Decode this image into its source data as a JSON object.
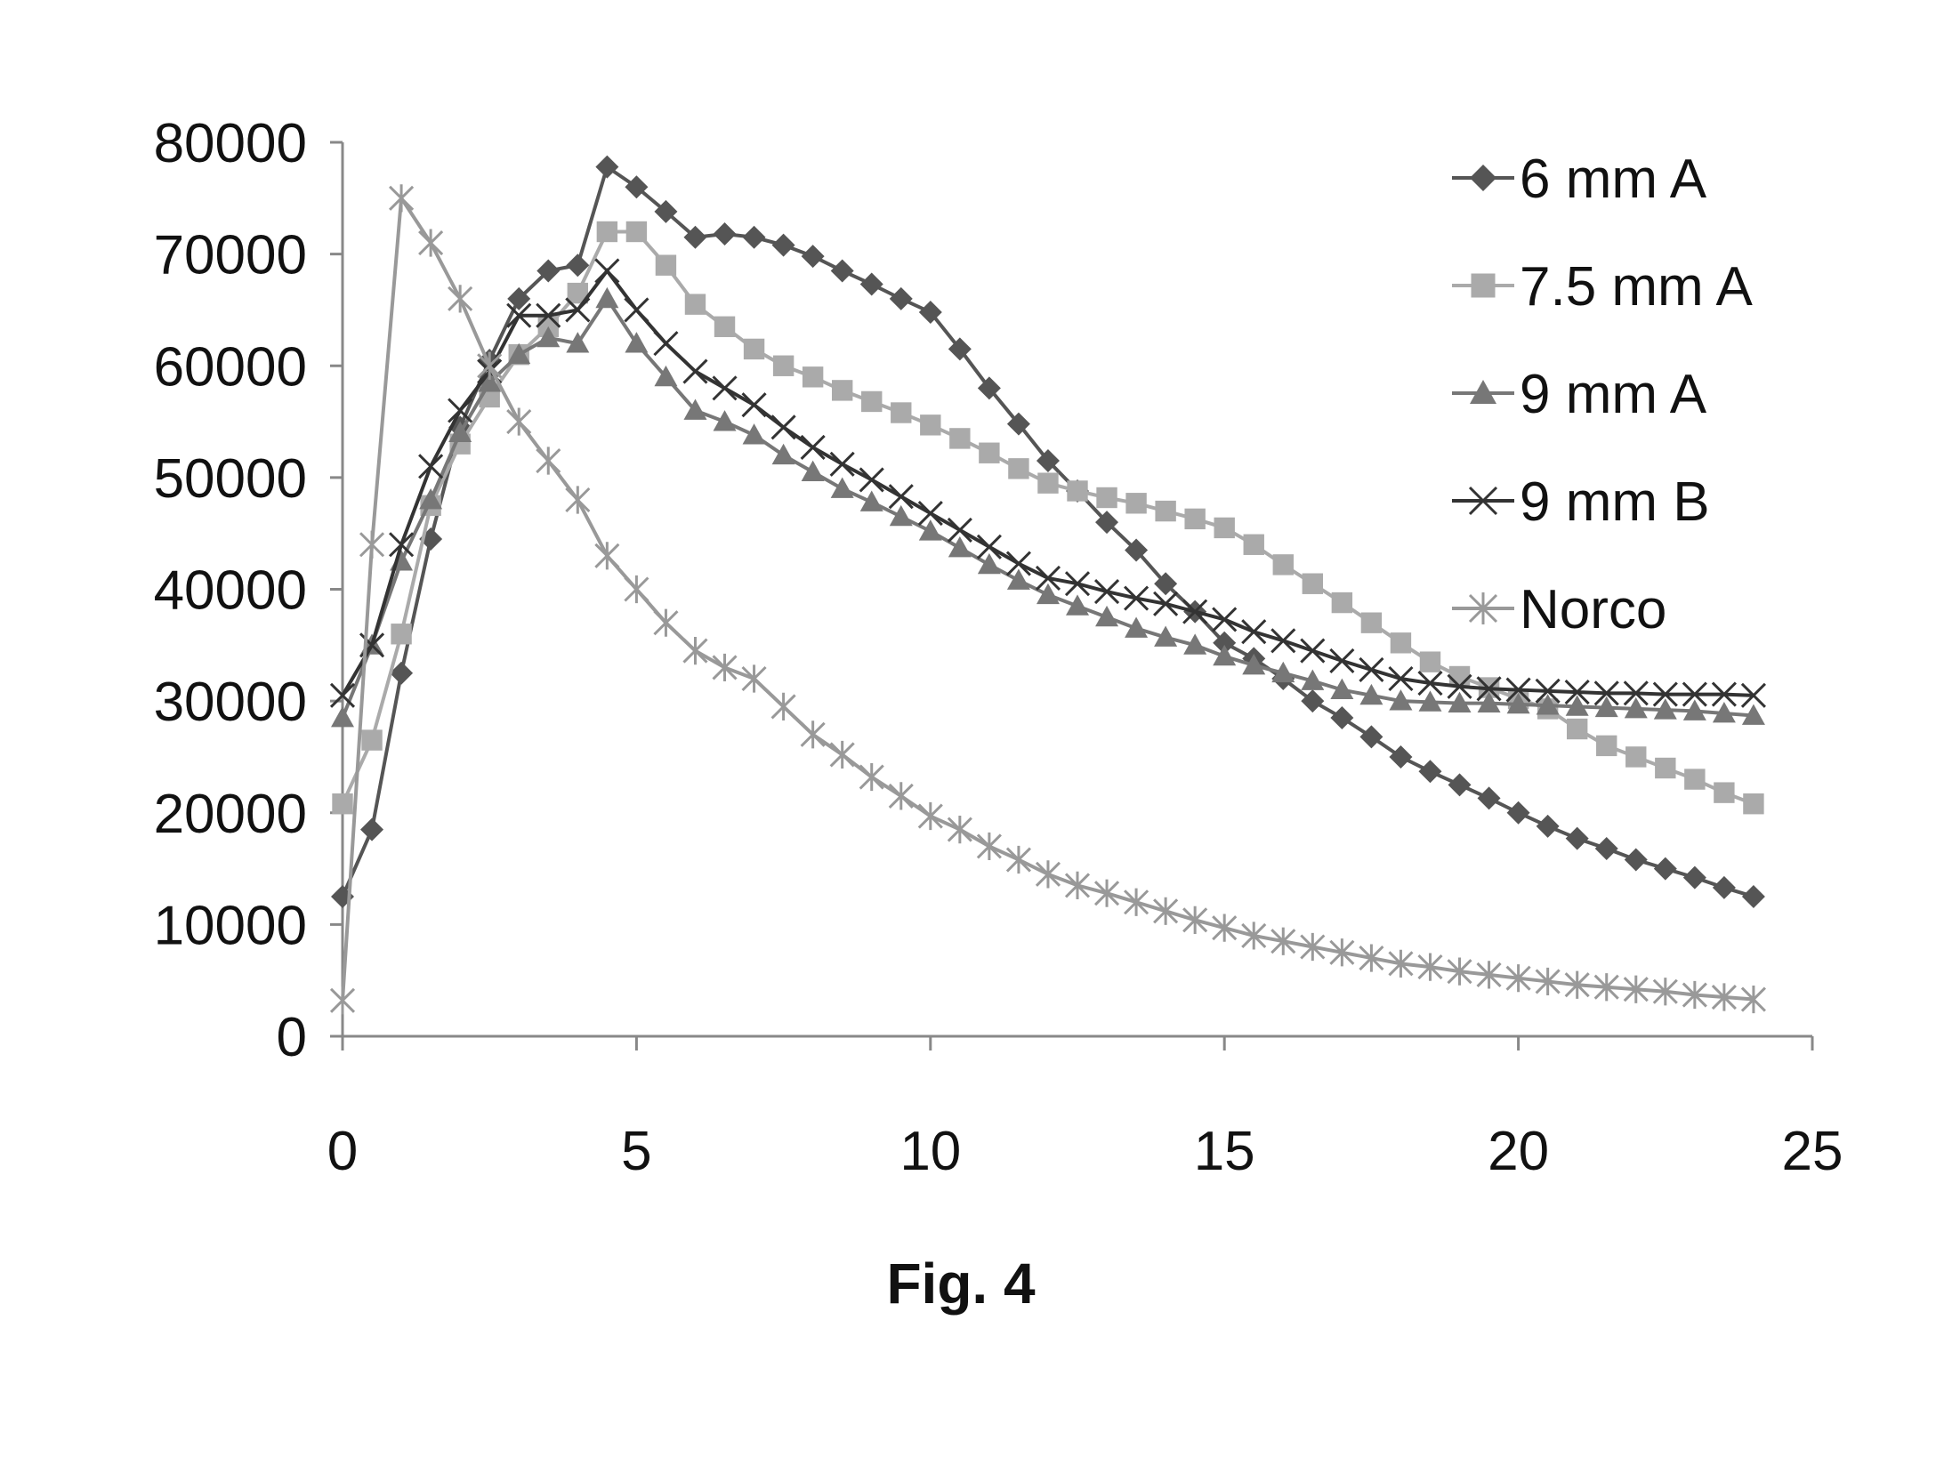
{
  "figure": {
    "caption": "Fig. 4"
  },
  "chart_data": {
    "type": "line",
    "title": "",
    "xlabel": "",
    "ylabel": "",
    "xlim": [
      0,
      25
    ],
    "ylim": [
      0,
      80000
    ],
    "xticks": [
      "0",
      "5",
      "10",
      "15",
      "20",
      "25"
    ],
    "yticks": [
      "0",
      "10000",
      "20000",
      "30000",
      "40000",
      "50000",
      "60000",
      "70000",
      "80000"
    ],
    "grid": false,
    "legend_position": "right",
    "x": [
      0,
      0.5,
      1,
      1.5,
      2,
      2.5,
      3,
      3.5,
      4,
      4.5,
      5,
      5.5,
      6,
      6.5,
      7,
      7.5,
      8,
      8.5,
      9,
      9.5,
      10,
      10.5,
      11,
      11.5,
      12,
      12.5,
      13,
      13.5,
      14,
      14.5,
      15,
      15.5,
      16,
      16.5,
      17,
      17.5,
      18,
      18.5,
      19,
      19.5,
      20,
      20.5,
      21,
      21.5,
      22,
      22.5,
      23,
      23.5,
      24
    ],
    "series": [
      {
        "name": "6 mm A",
        "marker": "diamond",
        "color": "#555555",
        "values": [
          12500,
          18500,
          32500,
          44500,
          54500,
          60500,
          66000,
          68500,
          69000,
          77800,
          76000,
          73800,
          71500,
          71800,
          71500,
          70800,
          69800,
          68500,
          67300,
          66000,
          64800,
          61500,
          58000,
          54800,
          51500,
          48800,
          46000,
          43500,
          40500,
          38000,
          35200,
          33800,
          32000,
          30000,
          28500,
          26800,
          25000,
          23700,
          22500,
          21300,
          20000,
          18800,
          17700,
          16800,
          15800,
          15000,
          14200,
          13300,
          12500
        ]
      },
      {
        "name": "7.5 mm A",
        "marker": "square",
        "color": "#aaaaaa",
        "values": [
          20800,
          26500,
          36000,
          47500,
          53000,
          57200,
          61000,
          63500,
          66500,
          72000,
          72000,
          69000,
          65500,
          63500,
          61500,
          60000,
          59000,
          57800,
          56800,
          55800,
          54700,
          53500,
          52200,
          50800,
          49500,
          48800,
          48200,
          47700,
          47000,
          46300,
          45500,
          44000,
          42200,
          40500,
          38800,
          37000,
          35200,
          33500,
          32200,
          31200,
          30200,
          29300,
          27500,
          26000,
          25000,
          24000,
          23000,
          21800,
          20800
        ]
      },
      {
        "name": "9 mm A",
        "marker": "triangle",
        "color": "#777777",
        "values": [
          28500,
          35000,
          42500,
          48000,
          54000,
          58500,
          61000,
          62500,
          62000,
          66000,
          62000,
          59000,
          56000,
          55000,
          53800,
          52000,
          50500,
          49000,
          47800,
          46500,
          45200,
          43700,
          42200,
          40800,
          39500,
          38500,
          37500,
          36500,
          35700,
          35000,
          34000,
          33200,
          32500,
          31800,
          31000,
          30500,
          30000,
          29900,
          29800,
          29800,
          29700,
          29600,
          29500,
          29400,
          29300,
          29200,
          29100,
          28900,
          28700
        ]
      },
      {
        "name": "9 mm B",
        "marker": "x",
        "color": "#333333",
        "values": [
          30500,
          35000,
          44000,
          51000,
          56000,
          59500,
          64500,
          64500,
          65000,
          68500,
          65000,
          62000,
          59500,
          58000,
          56500,
          54500,
          52700,
          51200,
          49800,
          48300,
          46800,
          45300,
          43800,
          42300,
          41000,
          40500,
          39800,
          39200,
          38700,
          38000,
          37300,
          36200,
          35400,
          34500,
          33600,
          32800,
          32000,
          31600,
          31300,
          31100,
          31000,
          30900,
          30800,
          30700,
          30700,
          30600,
          30600,
          30600,
          30500
        ]
      },
      {
        "name": "Norco",
        "marker": "star",
        "color": "#999999",
        "values": [
          3200,
          44000,
          75000,
          71000,
          66000,
          60000,
          55000,
          51500,
          48000,
          43000,
          40000,
          37000,
          34500,
          33000,
          32000,
          29500,
          27000,
          25200,
          23200,
          21500,
          19700,
          18500,
          17000,
          15800,
          14500,
          13500,
          12800,
          12000,
          11200,
          10400,
          9700,
          9000,
          8500,
          8000,
          7500,
          7000,
          6500,
          6200,
          5800,
          5500,
          5200,
          4900,
          4600,
          4400,
          4200,
          4000,
          3700,
          3500,
          3300
        ]
      }
    ]
  }
}
